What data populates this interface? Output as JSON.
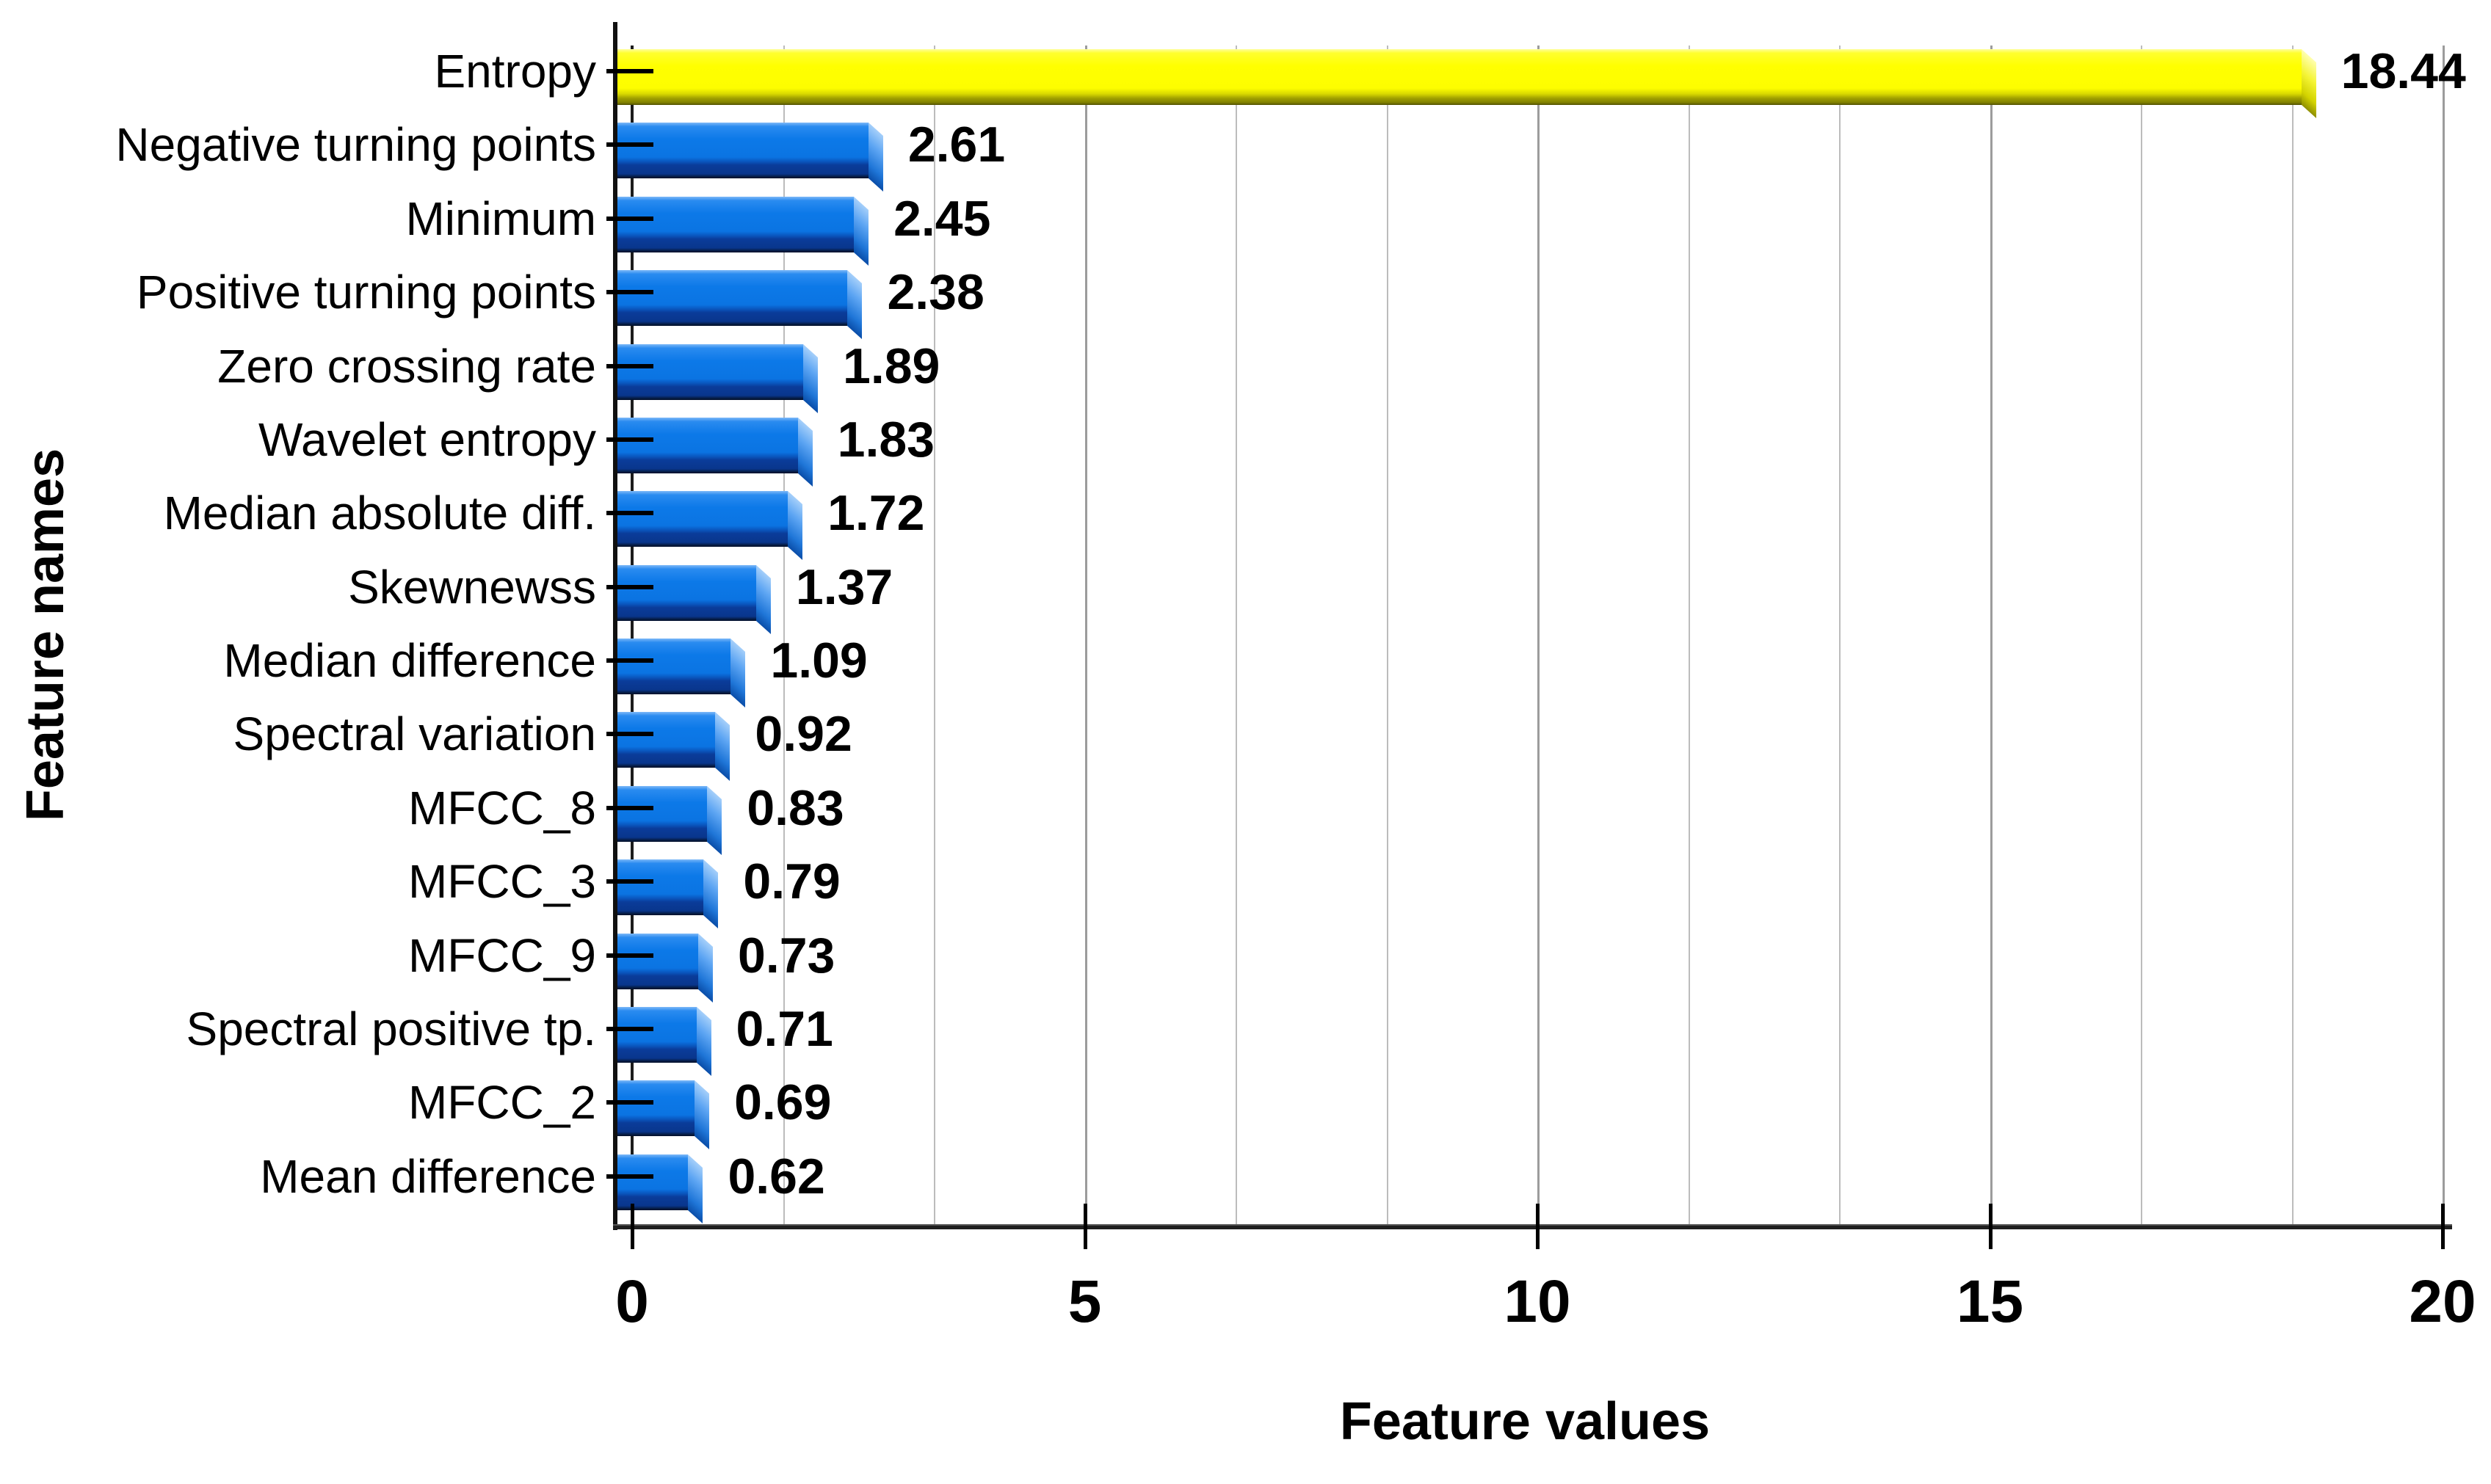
{
  "figure": {
    "background": "#ffffff"
  },
  "chart_data": {
    "type": "bar",
    "orientation": "horizontal",
    "title": "",
    "xlabel": "Feature values",
    "ylabel": "Feature names",
    "xlim": [
      0,
      20
    ],
    "x_ticks": [
      0,
      5,
      10,
      15,
      20
    ],
    "x_tick_labels": [
      "0",
      "5",
      "10",
      "15",
      "20"
    ],
    "grid": true,
    "gridline_step": 1.6667,
    "legend": false,
    "style": "3d-beveled-bars",
    "categories": [
      "Entropy",
      "Negative turning points",
      "Minimum",
      "Positive turning points",
      "Zero crossing rate",
      "Wavelet entropy",
      "Median absolute diff.",
      "Skewnewss",
      "Median difference",
      "Spectral variation",
      "MFCC_8",
      "MFCC_3",
      "MFCC_9",
      "Spectral positive tp.",
      "MFCC_2",
      "Mean difference"
    ],
    "values": [
      18.44,
      2.61,
      2.45,
      2.38,
      1.89,
      1.83,
      1.72,
      1.37,
      1.09,
      0.92,
      0.83,
      0.79,
      0.73,
      0.71,
      0.69,
      0.62
    ],
    "value_labels": [
      "18.44",
      "2.61",
      "2.45",
      "2.38",
      "1.89",
      "1.83",
      "1.72",
      "1.37",
      "1.09",
      "0.92",
      "0.83",
      "0.79",
      "0.73",
      "0.71",
      "0.69",
      "0.62"
    ],
    "highlight_index": 0,
    "colors": {
      "highlight_bar": "#ffff00",
      "highlight_bar_shadow": "#8f8f00",
      "bar": "#0c79e8",
      "bar_shadow": "#0a3c9a",
      "gridline": "#bcbcbc",
      "gridline_major": "#9c9c9c",
      "axis": "#101010",
      "text": "#000000"
    }
  }
}
